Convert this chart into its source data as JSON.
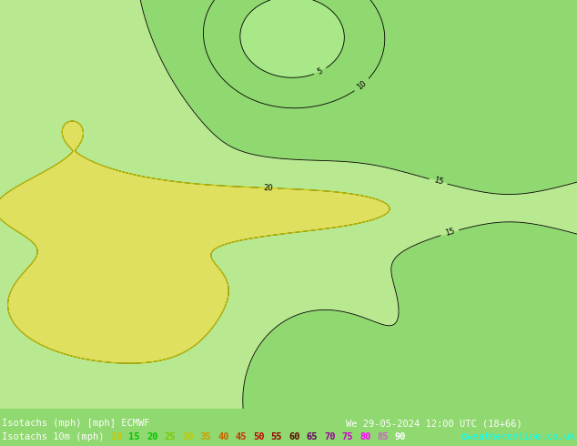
{
  "title_line1": "Isotachs (mph) [mph] ECMWF",
  "title_line2": "Isotachs 10m (mph)",
  "datetime_str": "We 29-05-2024 12:00 UTC (18+66)",
  "credit": "©weatheronline.co.uk",
  "legend_values": [
    10,
    15,
    20,
    25,
    30,
    35,
    40,
    45,
    50,
    55,
    60,
    65,
    70,
    75,
    80,
    85,
    90
  ],
  "legend_colors": [
    "#96f096",
    "#00c800",
    "#00c800",
    "#78c800",
    "#c8c800",
    "#c8a000",
    "#c86400",
    "#c83200",
    "#c80000",
    "#960000",
    "#640000",
    "#640064",
    "#960096",
    "#c800c8",
    "#ff00ff",
    "#c864c8",
    "#ffffff"
  ],
  "map_bg": "#90d870",
  "fig_width": 6.34,
  "fig_height": 4.9,
  "dpi": 100,
  "bottom_bar_color": "#000000",
  "text_color_white": "#ffffff",
  "text_color_cyan": "#00ffff",
  "label1_fontsize": 7.5,
  "label2_fontsize": 7.5,
  "legend_num_colors": [
    "#c8c800",
    "#00c800",
    "#00c000",
    "#00c000",
    "#c8a000",
    "#f0a000",
    "#c86400",
    "#c83200",
    "#c80000",
    "#960000",
    "#640000",
    "#960096",
    "#c800c8",
    "#ff00ff",
    "#c864c8",
    "#c864c8",
    "#ffffff"
  ],
  "num_colors": [
    "#c8c800",
    "#00c800",
    "#00c800",
    "#c8c800",
    "#c8a000",
    "#c86400",
    "#c86400",
    "#c86400",
    "#c83200",
    "#c80000",
    "#640000",
    "#960096",
    "#c800c8",
    "#ff00ff",
    "#c864c8",
    "#c864c8",
    "#ffffff"
  ]
}
